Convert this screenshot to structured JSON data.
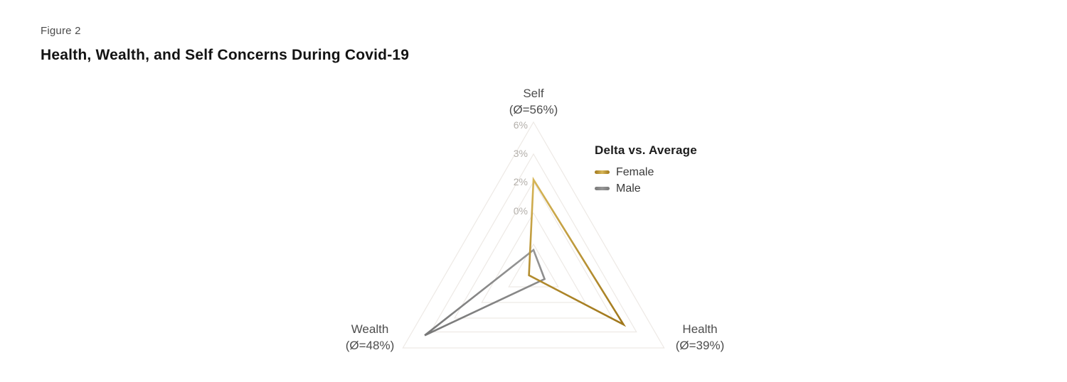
{
  "figure": {
    "label": "Figure 2",
    "title": "Health, Wealth, and Self Concerns During Covid-19"
  },
  "legend": {
    "title": "Delta vs. Average",
    "items": [
      {
        "label": "Female"
      },
      {
        "label": "Male"
      }
    ]
  },
  "chart_data": {
    "type": "radar",
    "shape": "triangle",
    "title": "Health, Wealth, and Self Concerns During Covid-19",
    "value_unit": "percentage-point delta vs. average",
    "grid": true,
    "legend_position": "right-of-chart-top",
    "axes": [
      {
        "label": "Self",
        "sublabel": "(Ø=56%)",
        "average_pct": 56
      },
      {
        "label": "Health",
        "sublabel": "(Ø=39%)",
        "average_pct": 39
      },
      {
        "label": "Wealth",
        "sublabel": "(Ø=48%)",
        "average_pct": 48
      }
    ],
    "ticks": [
      {
        "label": "6%",
        "value_pct": 6,
        "radius_fraction": 1.0
      },
      {
        "label": "3%",
        "value_pct": 3,
        "radius_fraction": 0.788
      },
      {
        "label": "2%",
        "value_pct": 2,
        "radius_fraction": 0.604
      },
      {
        "label": "0%",
        "value_pct": 0,
        "radius_fraction": 0.396
      },
      {
        "label": "",
        "value_pct": null,
        "radius_fraction": 0.189
      }
    ],
    "series": [
      {
        "name": "Female",
        "values_pct": [
          2.1,
          2.5,
          -3.5
        ],
        "radius_fractions": [
          0.618,
          0.689,
          0.035
        ],
        "color_start": "#D7B658",
        "color_end": "#A0771B"
      },
      {
        "name": "Male",
        "values_pct": [
          -2.4,
          -3.0,
          3.6
        ],
        "radius_fractions": [
          0.151,
          0.085,
          0.833
        ],
        "color_start": "#979797",
        "color_end": "#787878"
      }
    ],
    "grid_color": "#EDE9E5",
    "tick_label_color": "#B3AFAA",
    "axis_label_color": "#4D4D4D"
  }
}
